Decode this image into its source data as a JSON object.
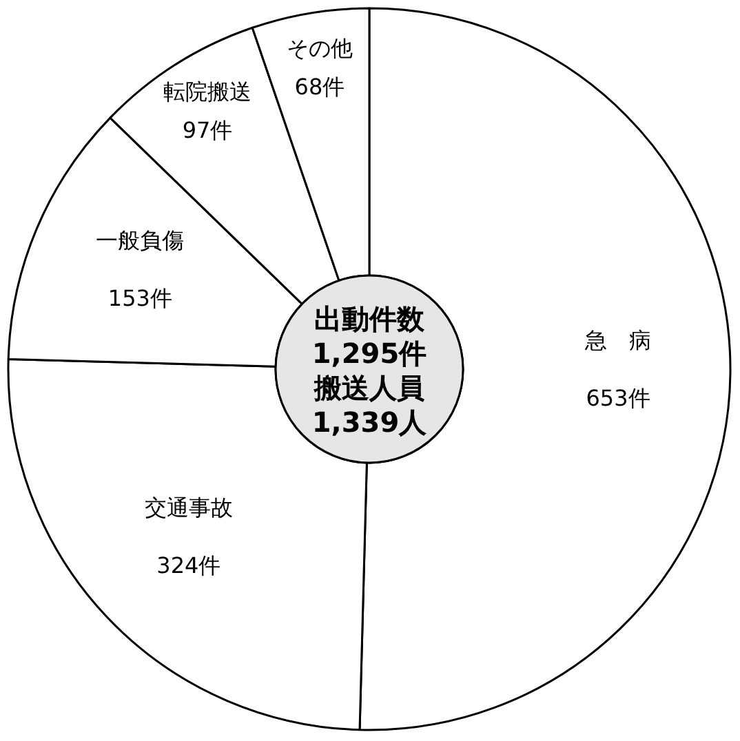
{
  "chart_data": {
    "type": "donut",
    "categories": [
      "急　病",
      "交通事故",
      "一般負傷",
      "転院搬送",
      "その他"
    ],
    "values": [
      653,
      324,
      153,
      97,
      68
    ],
    "value_labels": [
      "653件",
      "324件",
      "153件",
      "97件",
      "68件"
    ],
    "colors": [
      "#ffffff",
      "#ffffff",
      "#ffffff",
      "#ffffff",
      "#ffffff"
    ],
    "annotations": [
      "出動件数",
      "1,295件",
      "搬送人員",
      "1,339人"
    ]
  }
}
